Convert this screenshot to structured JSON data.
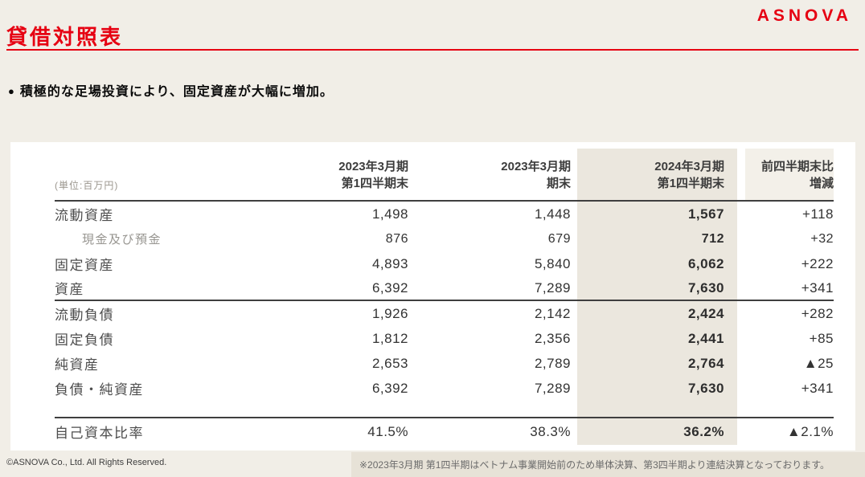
{
  "page": {
    "logo": "ASNOVA",
    "title": "貸借対照表",
    "bullet_marker": "●",
    "bullet_text": "積極的な足場投資により、固定資産が大幅に増加。",
    "footer_copyright": "©ASNOVA Co., Ltd. All Rights Reserved.",
    "footnote": "※2023年3月期 第1四半期はベトナム事業開始前のため単体決算、第3四半期より連結決算となっております。"
  },
  "colors": {
    "accent_red": "#e60012",
    "page_background": "#f1eee7",
    "card_background": "#ffffff",
    "highlight_column": "#ebe7de",
    "last_column_header": "#f3f0e9",
    "footnote_background": "#e7e2d7"
  },
  "table": {
    "unit_label": "(単位:百万円)",
    "columns": [
      {
        "line1": "2023年3月期",
        "line2": "第1四半期末",
        "highlight": false
      },
      {
        "line1": "2023年3月期",
        "line2": "期末",
        "highlight": false
      },
      {
        "line1": "2024年3月期",
        "line2": "第1四半期末",
        "highlight": true
      },
      {
        "line1": "前四半期末比",
        "line2": "増減",
        "highlight": false
      }
    ],
    "rows": [
      {
        "label": "流動資産",
        "indent": false,
        "section_end": false,
        "values": [
          "1,498",
          "1,448",
          "1,567",
          "+118"
        ]
      },
      {
        "label": "現金及び預金",
        "indent": true,
        "section_end": false,
        "values": [
          "876",
          "679",
          "712",
          "+32"
        ]
      },
      {
        "label": "固定資産",
        "indent": false,
        "section_end": false,
        "values": [
          "4,893",
          "5,840",
          "6,062",
          "+222"
        ]
      },
      {
        "label": "資産",
        "indent": false,
        "section_end": true,
        "values": [
          "6,392",
          "7,289",
          "7,630",
          "+341"
        ]
      },
      {
        "label": "流動負債",
        "indent": false,
        "section_end": false,
        "values": [
          "1,926",
          "2,142",
          "2,424",
          "+282"
        ]
      },
      {
        "label": "固定負債",
        "indent": false,
        "section_end": false,
        "values": [
          "1,812",
          "2,356",
          "2,441",
          "+85"
        ]
      },
      {
        "label": "純資産",
        "indent": false,
        "section_end": false,
        "values": [
          "2,653",
          "2,789",
          "2,764",
          "▲25"
        ]
      },
      {
        "label": "負債・純資産",
        "indent": false,
        "section_end": false,
        "values": [
          "6,392",
          "7,289",
          "7,630",
          "+341"
        ]
      }
    ],
    "summary_row": {
      "label": "自己資本比率",
      "values": [
        "41.5%",
        "38.3%",
        "36.2%",
        "▲2.1%"
      ]
    }
  }
}
